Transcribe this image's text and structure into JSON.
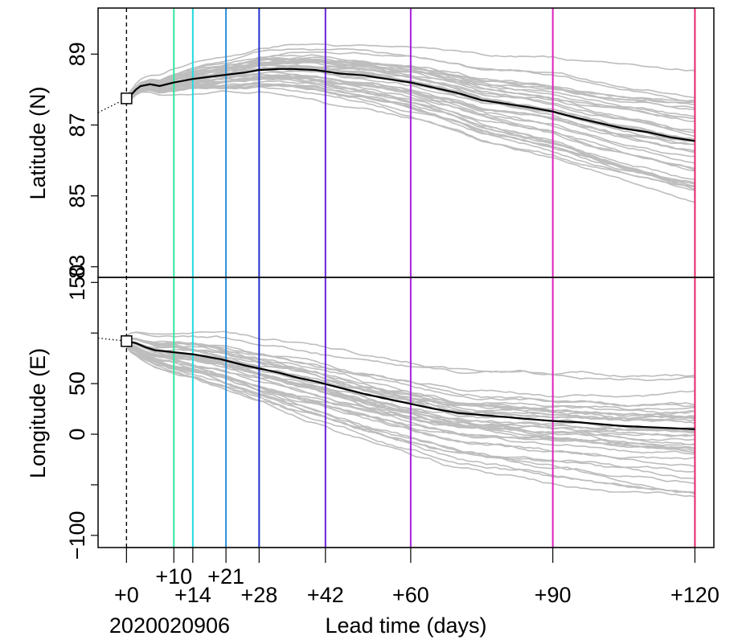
{
  "chart_data": [
    {
      "type": "line",
      "ylabel": "Latitude (N)",
      "ylim": [
        82.7,
        90.3
      ],
      "xlim": [
        -6,
        124
      ],
      "y_ticks": [
        83,
        85,
        87,
        89
      ],
      "y_tick_labels": [
        "83",
        "85",
        "87",
        "89"
      ],
      "observed_start": {
        "x": 0,
        "y": 87.75
      },
      "pre_start_dotted": {
        "x": [
          -6,
          0
        ],
        "y": [
          87.35,
          87.75
        ]
      },
      "ensemble_mean": {
        "x": [
          0,
          1,
          2,
          3,
          5,
          7,
          10,
          14,
          20,
          25,
          28,
          32,
          35,
          40,
          45,
          50,
          55,
          60,
          65,
          70,
          75,
          80,
          85,
          90,
          95,
          100,
          105,
          110,
          115,
          120
        ],
        "y": [
          87.75,
          87.85,
          88.0,
          88.1,
          88.15,
          88.1,
          88.2,
          88.3,
          88.4,
          88.48,
          88.55,
          88.58,
          88.58,
          88.55,
          88.45,
          88.4,
          88.3,
          88.2,
          88.05,
          87.9,
          87.7,
          87.6,
          87.5,
          87.38,
          87.2,
          87.05,
          86.9,
          86.8,
          86.65,
          86.55
        ]
      }
    },
    {
      "type": "line",
      "ylabel": "Longitude (E)",
      "ylim": [
        -112,
        155
      ],
      "xlim": [
        -6,
        124
      ],
      "y_ticks": [
        -100,
        -50,
        0,
        50,
        100,
        150
      ],
      "y_tick_labels": [
        "−100",
        "",
        "0",
        "50",
        "",
        "150"
      ],
      "observed_start": {
        "x": 0,
        "y": 92
      },
      "pre_start_dotted": {
        "x": [
          -6,
          0
        ],
        "y": [
          95,
          92
        ]
      },
      "ensemble_mean": {
        "x": [
          0,
          2,
          4,
          6,
          10,
          14,
          20,
          25,
          28,
          32,
          36,
          40,
          45,
          50,
          55,
          60,
          65,
          70,
          75,
          80,
          85,
          90,
          95,
          100,
          105,
          110,
          115,
          120
        ],
        "y": [
          92,
          90,
          86,
          83,
          81,
          79,
          74,
          68,
          65,
          61,
          56,
          52,
          46,
          40,
          35,
          30,
          25,
          21,
          19,
          17,
          15,
          13,
          12,
          10,
          8,
          7,
          6,
          5
        ]
      }
    }
  ],
  "x_axis": {
    "xlabel": "Lead time (days)",
    "init_label": "2020020906",
    "ticks": [
      0,
      10,
      14,
      21,
      28,
      42,
      60,
      90,
      120
    ],
    "tick_labels": [
      "+0",
      "+10",
      "+14",
      "+21",
      "+28",
      "+42",
      "+60",
      "+90",
      "+120"
    ],
    "upper_row_ticks": [
      10,
      21
    ]
  },
  "lead_time_lines": [
    {
      "day": 10,
      "color": "#2ee8a0"
    },
    {
      "day": 14,
      "color": "#22d8e0"
    },
    {
      "day": 21,
      "color": "#2a90d8"
    },
    {
      "day": 28,
      "color": "#2233cc"
    },
    {
      "day": 42,
      "color": "#6a22dd"
    },
    {
      "day": 60,
      "color": "#a522dd"
    },
    {
      "day": 90,
      "color": "#dd22bb"
    },
    {
      "day": 120,
      "color": "#e8226a"
    }
  ],
  "colors": {
    "ensemble": "#bdbdbd",
    "mean": "#000000",
    "init_line": "#000000"
  },
  "ensemble_members": 40
}
